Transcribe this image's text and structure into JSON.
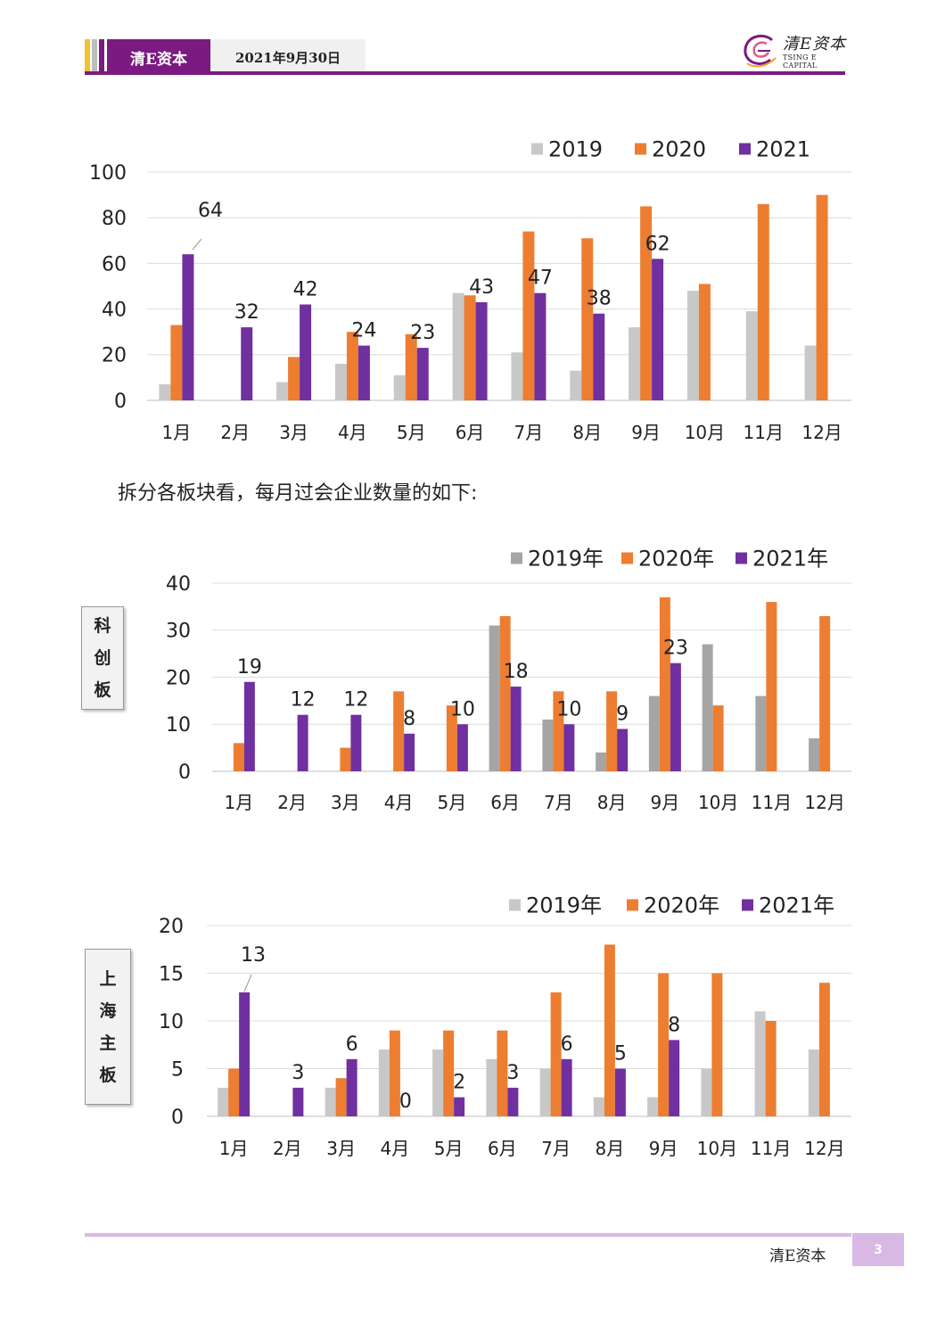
{
  "header": {
    "brand": "清E资本",
    "date": "2021年9月30日",
    "logo_cn": "清E资本",
    "logo_en": "TSING E CAPITAL",
    "colors": {
      "purple": "#7b1a80",
      "yellow": "#f2c12e",
      "gray": "#bdbdbd"
    }
  },
  "paragraph": "拆分各板块看，每月过会企业数量的如下:",
  "chart_data": [
    {
      "type": "bar",
      "categories": [
        "1月",
        "2月",
        "3月",
        "4月",
        "5月",
        "6月",
        "7月",
        "8月",
        "9月",
        "10月",
        "11月",
        "12月"
      ],
      "ylim": [
        0,
        100
      ],
      "yticks": [
        0,
        20,
        40,
        60,
        80,
        100
      ],
      "legend_position": "top-right",
      "series": [
        {
          "name": "2019",
          "color": "#c8c8c8",
          "values": [
            7,
            0,
            8,
            16,
            11,
            47,
            21,
            13,
            32,
            48,
            39,
            24
          ]
        },
        {
          "name": "2020",
          "color": "#ed7d31",
          "values": [
            33,
            0,
            19,
            30,
            29,
            46,
            74,
            71,
            85,
            51,
            86,
            90
          ]
        },
        {
          "name": "2021",
          "color": "#7030a0",
          "values": [
            64,
            32,
            42,
            24,
            23,
            43,
            47,
            38,
            62,
            null,
            null,
            null
          ]
        }
      ],
      "data_labels": [
        "64",
        "32",
        "42",
        "24",
        "23",
        "43",
        "47",
        "38",
        "62"
      ]
    },
    {
      "type": "bar",
      "board": "科创板",
      "categories": [
        "1月",
        "2月",
        "3月",
        "4月",
        "5月",
        "6月",
        "7月",
        "8月",
        "9月",
        "10月",
        "11月",
        "12月"
      ],
      "ylim": [
        0,
        40
      ],
      "yticks": [
        0,
        10,
        20,
        30,
        40
      ],
      "legend_position": "top-right",
      "series": [
        {
          "name": "2019年",
          "color": "#a5a5a5",
          "values": [
            0,
            0,
            0,
            0,
            0,
            31,
            11,
            4,
            16,
            27,
            16,
            7
          ]
        },
        {
          "name": "2020年",
          "color": "#ed7d31",
          "values": [
            6,
            0,
            5,
            17,
            14,
            33,
            17,
            17,
            37,
            14,
            36,
            33
          ]
        },
        {
          "name": "2021年",
          "color": "#7030a0",
          "values": [
            19,
            12,
            12,
            8,
            10,
            18,
            10,
            9,
            23,
            null,
            null,
            null
          ]
        }
      ],
      "data_labels": [
        "19",
        "12",
        "12",
        "8",
        "10",
        "18",
        "10",
        "9",
        "23"
      ]
    },
    {
      "type": "bar",
      "board": "上海主板",
      "categories": [
        "1月",
        "2月",
        "3月",
        "4月",
        "5月",
        "6月",
        "7月",
        "8月",
        "9月",
        "10月",
        "11月",
        "12月"
      ],
      "ylim": [
        0,
        20
      ],
      "yticks": [
        0,
        5,
        10,
        15,
        20
      ],
      "legend_position": "top-right",
      "series": [
        {
          "name": "2019年",
          "color": "#c8c8c8",
          "values": [
            3,
            0,
            3,
            7,
            7,
            6,
            5,
            2,
            2,
            5,
            11,
            7
          ]
        },
        {
          "name": "2020年",
          "color": "#ed7d31",
          "values": [
            5,
            0,
            4,
            9,
            9,
            9,
            13,
            18,
            15,
            15,
            10,
            14
          ]
        },
        {
          "name": "2021年",
          "color": "#7030a0",
          "values": [
            13,
            3,
            6,
            0,
            2,
            3,
            6,
            5,
            8,
            null,
            null,
            null
          ]
        }
      ],
      "data_labels": [
        "13",
        "3",
        "6",
        "0",
        "2",
        "3",
        "6",
        "5",
        "8"
      ]
    }
  ],
  "boards": {
    "kechuang": [
      "科",
      "创",
      "板"
    ],
    "shanghai": [
      "上",
      "海",
      "主",
      "板"
    ]
  },
  "footer": {
    "brand": "清E资本",
    "page": "3"
  }
}
